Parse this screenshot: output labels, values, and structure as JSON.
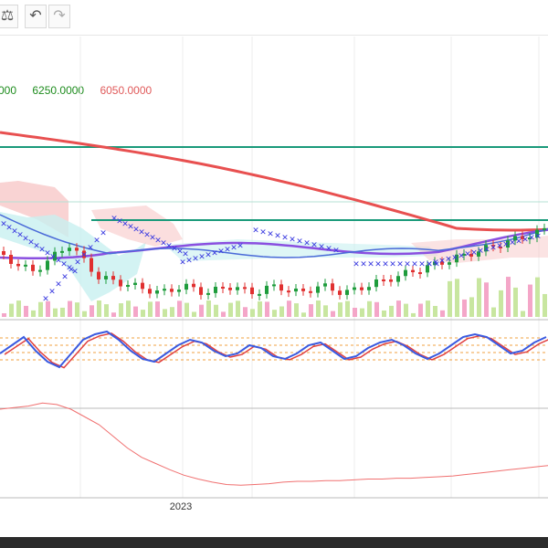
{
  "toolbar": {
    "scale_icon": "balance-scale-icon",
    "undo_icon": "undo-arrow-icon",
    "redo_icon": "redo-arrow-icon"
  },
  "legend": {
    "values": [
      {
        "text": "000",
        "color": "#1e8c1e"
      },
      {
        "text": "6250.0000",
        "color": "#1e8c1e"
      },
      {
        "text": "6050.0000",
        "color": "#e05a5a"
      }
    ]
  },
  "x_axis": {
    "year_label": "2023"
  },
  "colors": {
    "bull": "#1e9c3c",
    "bear": "#e03030",
    "ma_long": "#e85050",
    "ma_mid": "#8a4fe0",
    "ma_short": "#4a6ad8",
    "cloud_bear": "#f8c8c8",
    "cloud_bull": "#c8f0f0",
    "hline": "#1a9a7a",
    "stoch_k": "#3a5ae0",
    "stoch_d": "#e04040",
    "osc": "#f07070"
  },
  "chart_data": [
    {
      "type": "candlestick",
      "title": "",
      "horizontal_lines": [
        6250,
        6050
      ],
      "overlays": [
        "moving averages",
        "ichimoku cloud",
        "parabolic SAR",
        "volume"
      ]
    },
    {
      "type": "line",
      "title": "",
      "series": [
        {
          "values": [
            55,
            70,
            85,
            60,
            40,
            30,
            55,
            80,
            90,
            95,
            80,
            60,
            45,
            40,
            55,
            70,
            80,
            75,
            60,
            50,
            55,
            70,
            65,
            50,
            45,
            55,
            70,
            75,
            60,
            45,
            50,
            65,
            75,
            80,
            70,
            55,
            45,
            55,
            70,
            85,
            90,
            85,
            70,
            55,
            60,
            75,
            85
          ]
        }
      ]
    },
    {
      "type": "line",
      "title": "",
      "series": [
        {
          "values": [
            10,
            12,
            14,
            18,
            16,
            10,
            0,
            -10,
            -25,
            -40,
            -52,
            -60,
            -68,
            -75,
            -80,
            -84,
            -87,
            -88,
            -87,
            -86,
            -84,
            -83,
            -83,
            -82,
            -82,
            -81,
            -80,
            -80,
            -79,
            -79,
            -78,
            -77,
            -76,
            -74,
            -72,
            -70,
            -68,
            -66,
            -64,
            -62
          ]
        }
      ]
    }
  ]
}
